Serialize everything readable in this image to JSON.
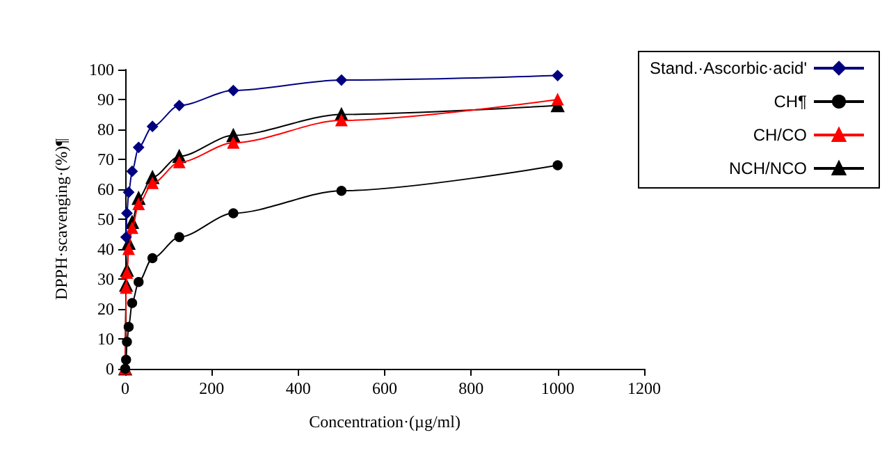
{
  "chart_data": {
    "type": "line",
    "xlabel": "Concentration·(µg/ml)",
    "ylabel": "DPPH·scavenging·(%)¶",
    "xlim": [
      0,
      1200
    ],
    "xticks": [
      0,
      200,
      400,
      600,
      800,
      1000,
      1200
    ],
    "ylim": [
      0,
      100
    ],
    "yticks": [
      0,
      10,
      20,
      30,
      40,
      50,
      60,
      70,
      80,
      90,
      100
    ],
    "grid": false,
    "legend": "top right",
    "line_style": "solid",
    "series": [
      {
        "name": "Stand.·Ascorbic·acid'",
        "color": "#000080",
        "marker": "diamond",
        "x": [
          2,
          4,
          8,
          16,
          31,
          63,
          125,
          250,
          500,
          1000
        ],
        "values": [
          44,
          52,
          59,
          66,
          74,
          81,
          88,
          93,
          96.5,
          98
        ]
      },
      {
        "name": "CH¶",
        "color": "#000000",
        "marker": "circle",
        "x": [
          0,
          2,
          4,
          8,
          16,
          31,
          63,
          125,
          250,
          500,
          1000
        ],
        "values": [
          0,
          3,
          9,
          14,
          22,
          29,
          37,
          44,
          52,
          59.5,
          68
        ]
      },
      {
        "name": "CH/CO",
        "color": "#ff0000",
        "marker": "triangle",
        "x": [
          0,
          2,
          4,
          8,
          16,
          31,
          63,
          125,
          250,
          500,
          1000
        ],
        "values": [
          0,
          27,
          32,
          40,
          47,
          55,
          62,
          69,
          75.5,
          83,
          90
        ]
      },
      {
        "name": "NCH/NCO",
        "color": "#000000",
        "marker": "triangle",
        "x": [
          0,
          2,
          4,
          8,
          16,
          31,
          63,
          125,
          250,
          500,
          1000
        ],
        "values": [
          0,
          28,
          33,
          42,
          49,
          57,
          64,
          71,
          78,
          85,
          88
        ]
      }
    ]
  }
}
